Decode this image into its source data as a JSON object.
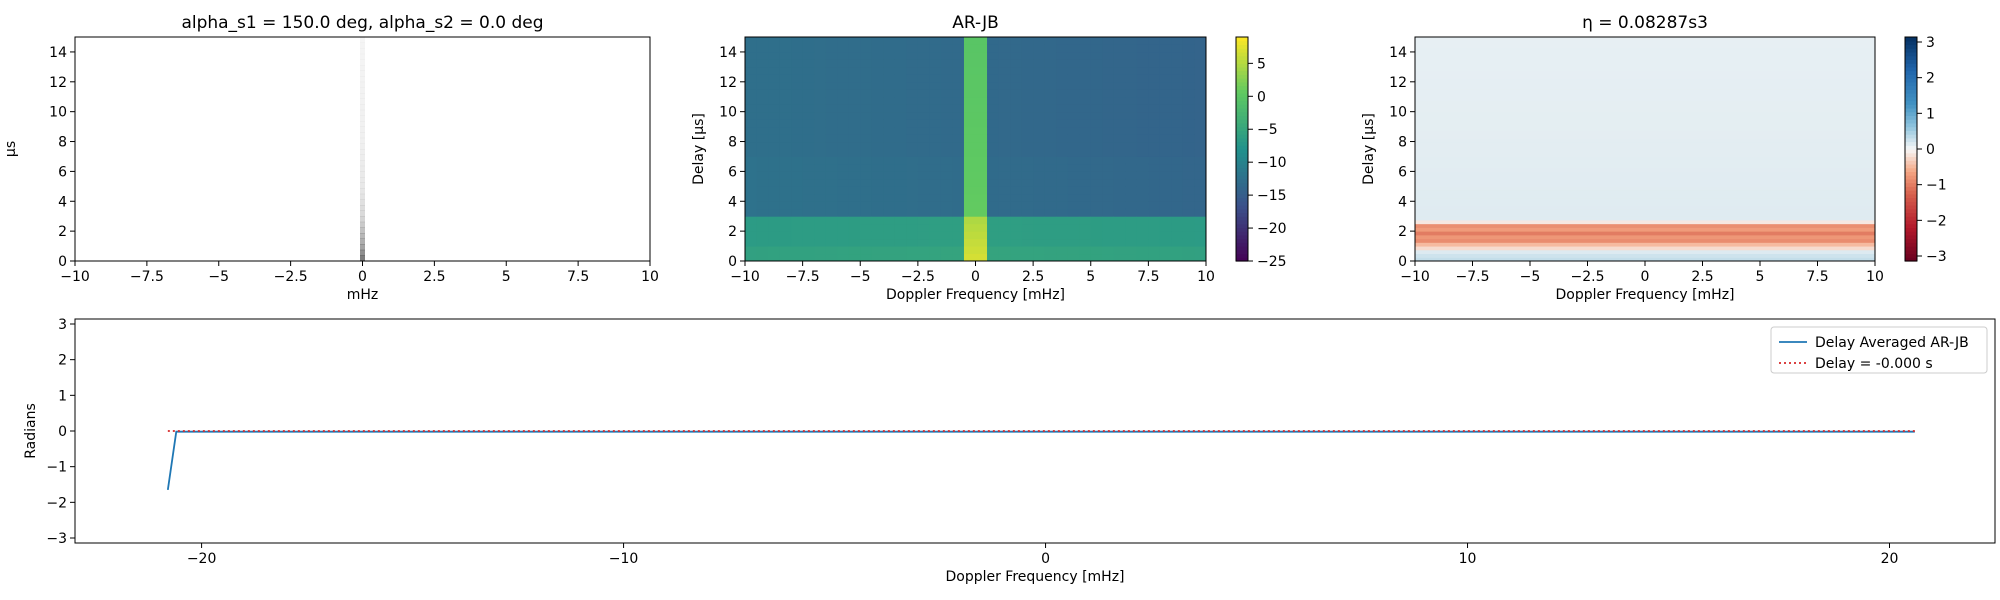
{
  "chart_data": [
    {
      "type": "heatmap",
      "title": "alpha_s1 = 150.0 deg, alpha_s2 = 0.0 deg",
      "xlabel": "mHz",
      "ylabel": "μs",
      "xlim": [
        -10,
        10
      ],
      "ylim": [
        0,
        15
      ],
      "xticks": [
        -10,
        -7.5,
        -5,
        -2.5,
        0,
        2.5,
        5,
        7.5,
        10
      ],
      "yticks": [
        0,
        2,
        4,
        6,
        8,
        10,
        12,
        14
      ],
      "colormap": "gray_r",
      "description_values": {
        "feature": "single narrow vertical column at 0 mHz, darker near delay 0",
        "column_doppler": 0,
        "intensity_by_delay": [
          [
            0,
            0.55
          ],
          [
            1,
            0.35
          ],
          [
            2,
            0.25
          ],
          [
            3,
            0.15
          ],
          [
            5,
            0.09
          ],
          [
            8,
            0.06
          ],
          [
            15,
            0.04
          ]
        ]
      }
    },
    {
      "type": "heatmap",
      "title": "AR-JB",
      "xlabel": "Doppler Frequency [mHz]",
      "ylabel": "Delay [μs]",
      "xlim": [
        -10,
        10
      ],
      "ylim": [
        0,
        15
      ],
      "xticks": [
        -10,
        -7.5,
        -5,
        -2.5,
        0,
        2.5,
        5,
        7.5,
        10
      ],
      "yticks": [
        0,
        2,
        4,
        6,
        8,
        10,
        12,
        14
      ],
      "colormap": "viridis",
      "colorbar": {
        "ticks": [
          5,
          0,
          -5,
          -10,
          -15,
          -20,
          -25
        ],
        "range": [
          -25,
          9
        ]
      },
      "description_values": {
        "background_db": -13,
        "low_delay_band_db": -6,
        "low_delay_band_delay_range": [
          0,
          2.8
        ],
        "center_column_db": 1,
        "center_column_peak_db": 7,
        "center_column_doppler": 0
      }
    },
    {
      "type": "heatmap",
      "title": "η = 0.08287s3",
      "xlabel": "Doppler Frequency [mHz]",
      "ylabel": "Delay [μs]",
      "xlim": [
        -10,
        10
      ],
      "ylim": [
        0,
        15
      ],
      "xticks": [
        -10,
        -7.5,
        -5,
        -2.5,
        0,
        2.5,
        5,
        7.5,
        10
      ],
      "yticks": [
        0,
        2,
        4,
        6,
        8,
        10,
        12,
        14
      ],
      "colormap": "RdBu",
      "colorbar": {
        "ticks": [
          3,
          2,
          1,
          0,
          -1,
          -2,
          -3
        ],
        "range": [
          -3.14,
          3.14
        ]
      },
      "description_values": {
        "band_delay_range": [
          0,
          2.8
        ],
        "phase_by_delay": [
          [
            0,
            0.35
          ],
          [
            0.6,
            0.2
          ],
          [
            1.2,
            -0.7
          ],
          [
            1.8,
            -0.95
          ],
          [
            2.4,
            -0.75
          ],
          [
            2.8,
            0.15
          ],
          [
            8.5,
            0.12
          ],
          [
            15,
            0.1
          ]
        ]
      }
    },
    {
      "type": "line",
      "xlabel": "Doppler Frequency [mHz]",
      "ylabel": "Radians",
      "xlim": [
        -23,
        22.5
      ],
      "ylim": [
        -3.14,
        3.14
      ],
      "xticks": [
        -20,
        -10,
        0,
        10,
        20
      ],
      "yticks": [
        -3,
        -2,
        -1,
        0,
        1,
        2,
        3
      ],
      "legend": {
        "placement": "top-right"
      },
      "series": [
        {
          "name": "Delay Averaged  AR-JB",
          "color": "#1f77b4",
          "style": "solid",
          "x": [
            -20.8,
            -20.6,
            -15,
            -10,
            -5,
            0,
            5,
            10,
            15,
            20.6
          ],
          "y": [
            -1.65,
            -0.02,
            -0.02,
            -0.02,
            -0.02,
            -0.02,
            -0.02,
            -0.02,
            -0.02,
            -0.02
          ]
        },
        {
          "name": "Delay = -0.000 s",
          "color": "#d62728",
          "style": "dotted",
          "x": [
            -20.8,
            20.6
          ],
          "y": [
            0,
            0
          ]
        }
      ]
    }
  ]
}
